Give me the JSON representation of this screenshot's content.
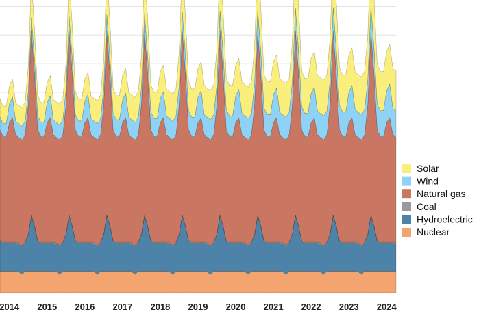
{
  "chart_data": {
    "type": "area",
    "stacked": true,
    "title": "",
    "xlabel": "",
    "ylabel": "",
    "xlim": [
      2013.75,
      2024.25
    ],
    "ylim": [
      0,
      13.6
    ],
    "grid": true,
    "legend_position": "right",
    "x_ticks": [
      {
        "value": 2014,
        "label": "2014"
      },
      {
        "value": 2015,
        "label": "2015"
      },
      {
        "value": 2016,
        "label": "2016"
      },
      {
        "value": 2017,
        "label": "2017"
      },
      {
        "value": 2018,
        "label": "2018"
      },
      {
        "value": 2019,
        "label": "2019"
      },
      {
        "value": 2020,
        "label": "2020"
      },
      {
        "value": 2021,
        "label": "2021"
      },
      {
        "value": 2022,
        "label": "2022"
      },
      {
        "value": 2023,
        "label": "2023"
      },
      {
        "value": 2024,
        "label": "2024"
      }
    ],
    "legend_order": [
      "Solar",
      "Wind",
      "Natural gas",
      "Coal",
      "Hydroelectric",
      "Nuclear"
    ],
    "stack_order": [
      "Nuclear",
      "Hydroelectric",
      "Coal",
      "Natural gas",
      "Wind",
      "Solar"
    ],
    "series": [
      {
        "name": "Nuclear",
        "color": "#f4a46f",
        "base": 1.0,
        "amp": 0.0,
        "minor": 0.0,
        "dip": 0.5,
        "trend": 0.0
      },
      {
        "name": "Hydroelectric",
        "color": "#4e83a9",
        "base": 1.3,
        "amp": 0.6,
        "minor": 0.0,
        "dip": 0.0,
        "trend": 0.0
      },
      {
        "name": "Coal",
        "color": "#9a9a9a",
        "base": 0.05,
        "amp": 0.0,
        "minor": 0.0,
        "dip": 0.0,
        "trend": 0.0
      },
      {
        "name": "Natural gas",
        "color": "#c97762",
        "base": 4.9,
        "amp": 1.7,
        "minor": 0.5,
        "dip": 0.0,
        "trend": 0.0
      },
      {
        "name": "Wind",
        "color": "#8ed3f6",
        "base": 0.6,
        "amp": 0.0,
        "minor": 0.2,
        "dip": 0.0,
        "trend": 0.06
      },
      {
        "name": "Solar",
        "color": "#faef7d",
        "base": 0.8,
        "amp": 0.4,
        "minor": 0.0,
        "dip": 0.0,
        "trend": 0.1
      }
    ]
  }
}
